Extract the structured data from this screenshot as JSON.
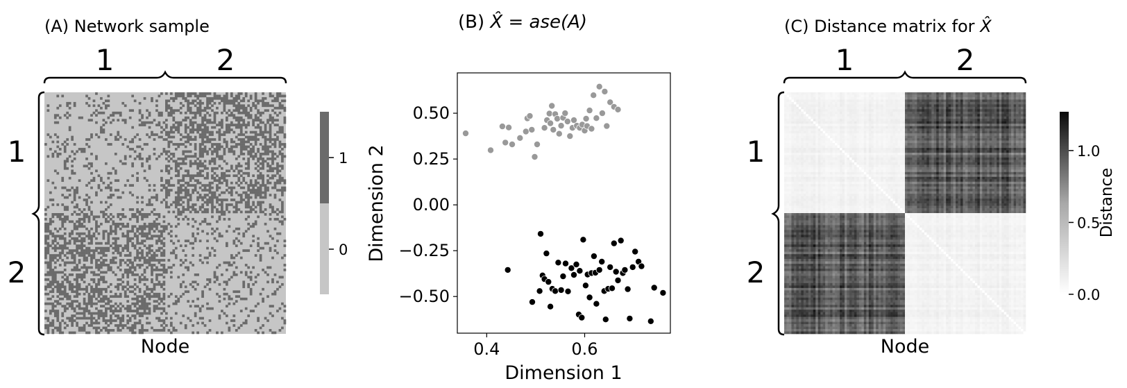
{
  "panels": [
    {
      "title": "(A) Network sample",
      "group_labels": [
        "1",
        "2"
      ],
      "xlabel": "Node",
      "colorbar": {
        "ticks": [
          "0",
          "1"
        ],
        "levels": [
          0,
          1
        ],
        "colors": [
          "#c6c6c6",
          "#6b6b6b"
        ]
      },
      "chart_data": {
        "type": "heatmap",
        "n": 100,
        "blocks": 2,
        "block_sizes": [
          50,
          50
        ],
        "edge_probability_within": 0.15,
        "edge_probability_between": 0.5,
        "values": [
          0,
          1
        ]
      }
    },
    {
      "title_prefix": "(B) ",
      "title_math": "X̂ = ase(A)",
      "xlabel": "Dimension 1",
      "ylabel": "Dimension 2",
      "xticks": [
        "0.4",
        "0.6"
      ],
      "yticks": [
        "0.50",
        "0.25",
        "0.00",
        "−0.25",
        "−0.50"
      ],
      "chart_data": {
        "type": "scatter",
        "xlim": [
          0.34,
          0.775
        ],
        "ylim": [
          -0.7,
          0.72
        ],
        "xticks": [
          0.4,
          0.6
        ],
        "yticks": [
          0.5,
          0.25,
          0.0,
          -0.25,
          -0.5
        ],
        "series": [
          {
            "color": "#999999",
            "points": [
              [
                0.357,
                0.39
              ],
              [
                0.408,
                0.298
              ],
              [
                0.432,
                0.428
              ],
              [
                0.445,
                0.422
              ],
              [
                0.438,
                0.34
              ],
              [
                0.452,
                0.33
              ],
              [
                0.468,
                0.365
              ],
              [
                0.48,
                0.4
              ],
              [
                0.483,
                0.472
              ],
              [
                0.488,
                0.485
              ],
              [
                0.492,
                0.41
              ],
              [
                0.498,
                0.262
              ],
              [
                0.503,
                0.33
              ],
              [
                0.518,
                0.42
              ],
              [
                0.523,
                0.462
              ],
              [
                0.528,
                0.498
              ],
              [
                0.53,
                0.445
              ],
              [
                0.533,
                0.54
              ],
              [
                0.536,
                0.41
              ],
              [
                0.54,
                0.495
              ],
              [
                0.544,
                0.47
              ],
              [
                0.548,
                0.388
              ],
              [
                0.552,
                0.432
              ],
              [
                0.556,
                0.475
              ],
              [
                0.56,
                0.5
              ],
              [
                0.565,
                0.455
              ],
              [
                0.57,
                0.375
              ],
              [
                0.575,
                0.42
              ],
              [
                0.578,
                0.462
              ],
              [
                0.584,
                0.432
              ],
              [
                0.59,
                0.42
              ],
              [
                0.595,
                0.438
              ],
              [
                0.6,
                0.405
              ],
              [
                0.603,
                0.47
              ],
              [
                0.605,
                0.43
              ],
              [
                0.61,
                0.515
              ],
              [
                0.614,
                0.415
              ],
              [
                0.618,
                0.598
              ],
              [
                0.624,
                0.473
              ],
              [
                0.63,
                0.645
              ],
              [
                0.636,
                0.5
              ],
              [
                0.641,
                0.618
              ],
              [
                0.645,
                0.43
              ],
              [
                0.652,
                0.56
              ],
              [
                0.66,
                0.535
              ],
              [
                0.668,
                0.52
              ]
            ]
          },
          {
            "color": "#000000",
            "points": [
              [
                0.443,
                -0.355
              ],
              [
                0.493,
                -0.53
              ],
              [
                0.508,
                -0.47
              ],
              [
                0.51,
                -0.158
              ],
              [
                0.514,
                -0.385
              ],
              [
                0.518,
                -0.405
              ],
              [
                0.522,
                -0.265
              ],
              [
                0.526,
                -0.42
              ],
              [
                0.53,
                -0.555
              ],
              [
                0.534,
                -0.458
              ],
              [
                0.54,
                -0.47
              ],
              [
                0.546,
                -0.315
              ],
              [
                0.552,
                -0.465
              ],
              [
                0.556,
                -0.39
              ],
              [
                0.561,
                -0.32
              ],
              [
                0.566,
                -0.472
              ],
              [
                0.573,
                -0.345
              ],
              [
                0.578,
                -0.382
              ],
              [
                0.583,
                -0.325
              ],
              [
                0.588,
                -0.598
              ],
              [
                0.59,
                -0.36
              ],
              [
                0.594,
                -0.615
              ],
              [
                0.597,
                -0.19
              ],
              [
                0.602,
                -0.44
              ],
              [
                0.606,
                -0.38
              ],
              [
                0.61,
                -0.505
              ],
              [
                0.614,
                -0.372
              ],
              [
                0.619,
                -0.28
              ],
              [
                0.622,
                -0.37
              ],
              [
                0.624,
                -0.54
              ],
              [
                0.63,
                -0.355
              ],
              [
                0.635,
                -0.31
              ],
              [
                0.64,
                -0.47
              ],
              [
                0.643,
                -0.625
              ],
              [
                0.648,
                -0.458
              ],
              [
                0.652,
                -0.34
              ],
              [
                0.656,
                -0.455
              ],
              [
                0.66,
                -0.21
              ],
              [
                0.664,
                -0.365
              ],
              [
                0.668,
                -0.412
              ],
              [
                0.674,
                -0.195
              ],
              [
                0.678,
                -0.372
              ],
              [
                0.682,
                -0.355
              ],
              [
                0.688,
                -0.46
              ],
              [
                0.692,
                -0.62
              ],
              [
                0.698,
                -0.34
              ],
              [
                0.703,
                -0.255
              ],
              [
                0.71,
                -0.31
              ],
              [
                0.716,
                -0.335
              ],
              [
                0.735,
                -0.635
              ],
              [
                0.742,
                -0.452
              ],
              [
                0.76,
                -0.48
              ]
            ]
          }
        ]
      }
    },
    {
      "title_prefix": "(C) Distance matrix for ",
      "title_math": "X̂",
      "group_labels": [
        "1",
        "2"
      ],
      "xlabel": "Node",
      "colorbar": {
        "label": "Distance",
        "ticks": [
          "0.0",
          "0.5",
          "1.0"
        ],
        "levels": [
          0.0,
          0.5,
          1.0
        ],
        "max": 1.27
      },
      "chart_data": {
        "type": "heatmap",
        "n": 100,
        "blocks": 2,
        "block_sizes": [
          50,
          50
        ],
        "typical_distance_within": 0.12,
        "typical_distance_between": 0.95,
        "vmin": 0.0,
        "vmax": 1.27
      }
    }
  ]
}
